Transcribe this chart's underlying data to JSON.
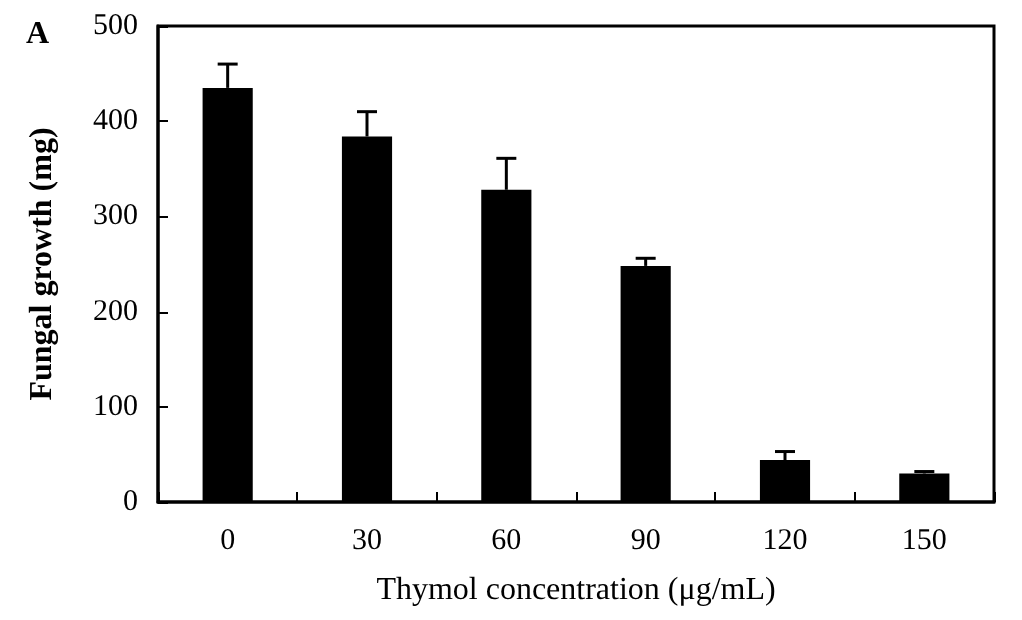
{
  "chart_data": {
    "type": "bar",
    "title": "A",
    "xlabel": "Thymol concentration (μg/mL)",
    "ylabel": "Fungal growth (mg)",
    "categories": [
      "0",
      "30",
      "60",
      "90",
      "120",
      "150"
    ],
    "values": [
      435,
      384,
      328,
      248,
      44,
      30
    ],
    "errors": [
      [
        435,
        460
      ],
      [
        384,
        410
      ],
      [
        328,
        361
      ],
      [
        248,
        256
      ],
      [
        44,
        53
      ],
      [
        30,
        32
      ]
    ],
    "color": "#000000",
    "ylim": [
      0,
      500
    ],
    "yticks": [
      0,
      100,
      200,
      300,
      400,
      500
    ],
    "grid": false
  }
}
